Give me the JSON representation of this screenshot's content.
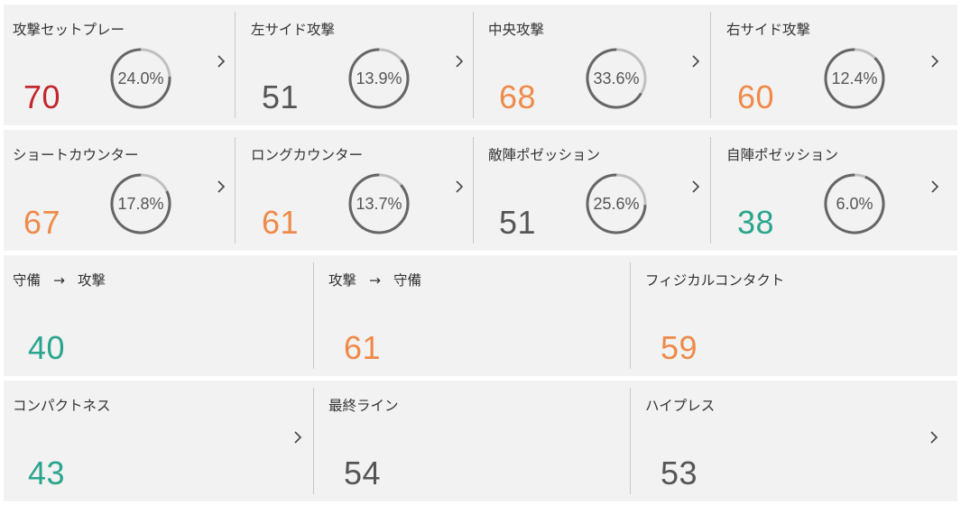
{
  "colors": {
    "red": "#c1272d",
    "orange": "#ef8a4a",
    "gray": "#555555",
    "teal": "#2aa58d",
    "ring_track": "#c0c0c0",
    "ring_progress": "#666666"
  },
  "rows": [
    {
      "cards": [
        {
          "label": "攻撃セットプレー",
          "value": "70",
          "color": "#c1272d",
          "percent": "24.0%",
          "fraction": 0.24
        },
        {
          "label": "左サイド攻撃",
          "value": "51",
          "color": "#555555",
          "percent": "13.9%",
          "fraction": 0.139
        },
        {
          "label": "中央攻撃",
          "value": "68",
          "color": "#ef8a4a",
          "percent": "33.6%",
          "fraction": 0.336
        },
        {
          "label": "右サイド攻撃",
          "value": "60",
          "color": "#ef8a4a",
          "percent": "12.4%",
          "fraction": 0.124
        }
      ]
    },
    {
      "cards": [
        {
          "label": "ショートカウンター",
          "value": "67",
          "color": "#ef8a4a",
          "percent": "17.8%",
          "fraction": 0.178
        },
        {
          "label": "ロングカウンター",
          "value": "61",
          "color": "#ef8a4a",
          "percent": "13.7%",
          "fraction": 0.137
        },
        {
          "label": "敵陣ポゼッション",
          "value": "51",
          "color": "#555555",
          "percent": "25.6%",
          "fraction": 0.256
        },
        {
          "label": "自陣ポゼッション",
          "value": "38",
          "color": "#2aa58d",
          "percent": "6.0%",
          "fraction": 0.06
        }
      ]
    },
    {
      "cards": [
        {
          "label_from": "守備",
          "arrow": "→",
          "label_to": "攻撃",
          "value": "40",
          "color": "#2aa58d"
        },
        {
          "label_from": "攻撃",
          "arrow": "→",
          "label_to": "守備",
          "value": "61",
          "color": "#ef8a4a"
        },
        {
          "label": "フィジカルコンタクト",
          "value": "59",
          "color": "#ef8a4a"
        }
      ]
    },
    {
      "cards": [
        {
          "label": "コンパクトネス",
          "value": "43",
          "color": "#2aa58d"
        },
        {
          "label": "最終ライン",
          "value": "54",
          "color": "#555555"
        },
        {
          "label": "ハイプレス",
          "value": "53",
          "color": "#555555"
        }
      ]
    }
  ]
}
